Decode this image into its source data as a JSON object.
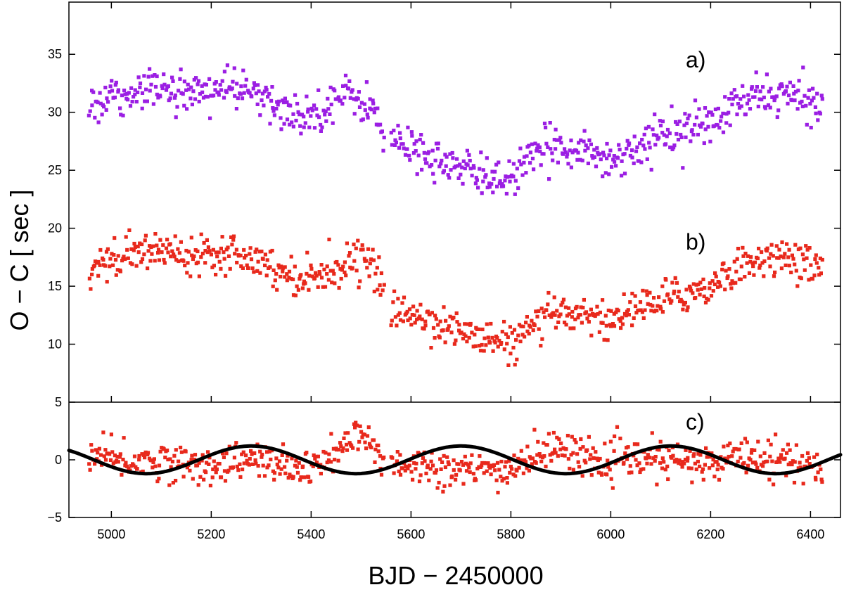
{
  "chart_data": {
    "type": "scatter",
    "xlabel": "BJD − 2450000",
    "ylabel": "O − C   [ sec ]",
    "xlim": [
      4915,
      6460
    ],
    "x_ticks": [
      5000,
      5200,
      5400,
      5600,
      5800,
      6000,
      6200,
      6400
    ],
    "x_tick_labels": [
      "5000",
      "5200",
      "5400",
      "5600",
      "5800",
      "6000",
      "6200",
      "6400"
    ],
    "grid": false,
    "panels": [
      {
        "id": "upper",
        "ylim": [
          5,
          39.5
        ],
        "y_ticks": [
          10,
          15,
          20,
          25,
          30,
          35
        ],
        "y_tick_labels": [
          "10",
          "15",
          "20",
          "25",
          "30",
          "35"
        ],
        "series": [
          {
            "label": "a)",
            "color": "#9b1ee3",
            "trend": [
              [
                4955,
                30.3
              ],
              [
                5000,
                31.5
              ],
              [
                5050,
                32.0
              ],
              [
                5100,
                32.2
              ],
              [
                5150,
                31.5
              ],
              [
                5200,
                32.0
              ],
              [
                5250,
                32.0
              ],
              [
                5280,
                31.8
              ],
              [
                5300,
                31.0
              ],
              [
                5350,
                30.0
              ],
              [
                5400,
                29.8
              ],
              [
                5450,
                31.2
              ],
              [
                5480,
                31.5
              ],
              [
                5520,
                30.5
              ],
              [
                5545,
                28.0
              ],
              [
                5560,
                27.5
              ],
              [
                5600,
                27.0
              ],
              [
                5650,
                26.0
              ],
              [
                5700,
                25.0
              ],
              [
                5750,
                24.5
              ],
              [
                5800,
                24.3
              ],
              [
                5830,
                25.5
              ],
              [
                5870,
                26.8
              ],
              [
                5900,
                27.2
              ],
              [
                5950,
                26.8
              ],
              [
                5990,
                25.8
              ],
              [
                6030,
                26.5
              ],
              [
                6080,
                27.5
              ],
              [
                6120,
                28.3
              ],
              [
                6200,
                29.0
              ],
              [
                6250,
                30.5
              ],
              [
                6300,
                31.5
              ],
              [
                6350,
                31.5
              ],
              [
                6420,
                30.5
              ]
            ],
            "scatter": 1.1,
            "count": 700
          },
          {
            "label": "b)",
            "color": "#e8291c",
            "trend": [
              [
                4955,
                16.8
              ],
              [
                5000,
                17.3
              ],
              [
                5050,
                17.8
              ],
              [
                5100,
                18.2
              ],
              [
                5150,
                17.8
              ],
              [
                5200,
                18.0
              ],
              [
                5250,
                18.0
              ],
              [
                5300,
                17.3
              ],
              [
                5350,
                16.0
              ],
              [
                5400,
                15.8
              ],
              [
                5450,
                16.5
              ],
              [
                5490,
                17.5
              ],
              [
                5520,
                17.0
              ],
              [
                5545,
                14.5
              ],
              [
                5560,
                13.0
              ],
              [
                5600,
                12.5
              ],
              [
                5650,
                12.0
              ],
              [
                5700,
                11.0
              ],
              [
                5750,
                10.5
              ],
              [
                5800,
                10.0
              ],
              [
                5830,
                11.0
              ],
              [
                5870,
                12.0
              ],
              [
                5900,
                12.8
              ],
              [
                5950,
                12.8
              ],
              [
                5990,
                11.8
              ],
              [
                6030,
                12.8
              ],
              [
                6080,
                13.5
              ],
              [
                6120,
                14.0
              ],
              [
                6200,
                15.0
              ],
              [
                6250,
                16.5
              ],
              [
                6300,
                17.5
              ],
              [
                6350,
                17.3
              ],
              [
                6420,
                16.8
              ]
            ],
            "scatter": 1.0,
            "count": 700
          }
        ]
      },
      {
        "id": "lower",
        "ylim": [
          -5,
          5
        ],
        "y_ticks": [
          -5,
          0,
          5
        ],
        "y_tick_labels": [
          "−5",
          "0",
          "5"
        ],
        "series": [
          {
            "label": "c)",
            "color": "#e8291c",
            "trend": [
              [
                4955,
                0.3
              ],
              [
                5000,
                0.0
              ],
              [
                5050,
                -0.2
              ],
              [
                5100,
                0.0
              ],
              [
                5150,
                -0.5
              ],
              [
                5200,
                -0.5
              ],
              [
                5250,
                -0.2
              ],
              [
                5300,
                0.0
              ],
              [
                5350,
                -0.8
              ],
              [
                5400,
                -0.8
              ],
              [
                5450,
                0.5
              ],
              [
                5490,
                2.0
              ],
              [
                5520,
                1.5
              ],
              [
                5545,
                0.0
              ],
              [
                5570,
                0.0
              ],
              [
                5600,
                -0.5
              ],
              [
                5650,
                -0.5
              ],
              [
                5700,
                -1.0
              ],
              [
                5750,
                -1.0
              ],
              [
                5800,
                -0.8
              ],
              [
                5850,
                0.5
              ],
              [
                5900,
                1.0
              ],
              [
                5950,
                0.5
              ],
              [
                5990,
                -0.5
              ],
              [
                6030,
                0.0
              ],
              [
                6080,
                0.0
              ],
              [
                6120,
                0.0
              ],
              [
                6200,
                -0.5
              ],
              [
                6250,
                0.5
              ],
              [
                6300,
                0.5
              ],
              [
                6350,
                0.0
              ],
              [
                6420,
                -1.0
              ]
            ],
            "scatter": 1.0,
            "count": 700
          }
        ],
        "model_curve": {
          "color": "#000000",
          "amplitude": 1.2,
          "period": 420,
          "minimum_at": 5070
        }
      }
    ],
    "x_data_range": [
      4955,
      6425
    ]
  }
}
